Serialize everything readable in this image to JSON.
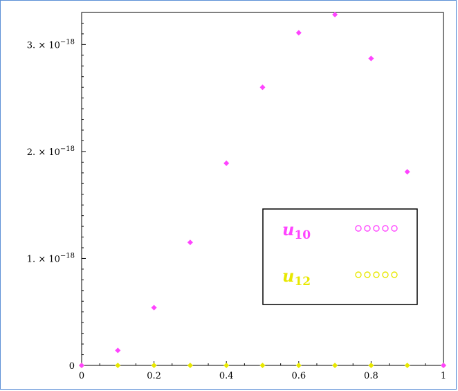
{
  "chart_data": {
    "type": "scatter",
    "xlim": [
      0,
      1
    ],
    "ylim": [
      0,
      3.3e-18
    ],
    "x_ticks": [
      {
        "value": 0,
        "label": "0"
      },
      {
        "value": 0.2,
        "label": "0.2"
      },
      {
        "value": 0.4,
        "label": "0.4"
      },
      {
        "value": 0.6,
        "label": "0.6"
      },
      {
        "value": 0.8,
        "label": "0.8"
      },
      {
        "value": 1,
        "label": "1"
      }
    ],
    "y_ticks": [
      {
        "value": 0,
        "label": "0",
        "mantissa": "",
        "exponent": ""
      },
      {
        "value": 1e-18,
        "label": "1. × 10⁻¹⁸",
        "mantissa": "1. × 10",
        "exponent": "−18"
      },
      {
        "value": 2e-18,
        "label": "2. × 10⁻¹⁸",
        "mantissa": "2. × 10",
        "exponent": "−18"
      },
      {
        "value": 3e-18,
        "label": "3. × 10⁻¹⁸",
        "mantissa": "3. × 10",
        "exponent": "−18"
      }
    ],
    "grid": false,
    "legend_position": "center-right",
    "series": [
      {
        "name": "u10",
        "name_base": "u",
        "name_sub": "10",
        "color": "#ff44ff",
        "marker": "diamond",
        "legend_symbol": "ooooo",
        "x": [
          0,
          0.1,
          0.2,
          0.3,
          0.4,
          0.5,
          0.6,
          0.7,
          0.8,
          0.9,
          1.0
        ],
        "y": [
          0,
          1.4e-19,
          5.4e-19,
          1.15e-18,
          1.89e-18,
          2.6e-18,
          3.11e-18,
          3.28e-18,
          2.87e-18,
          1.81e-18,
          0
        ]
      },
      {
        "name": "u12",
        "name_base": "u",
        "name_sub": "12",
        "color": "#e8e800",
        "marker": "diamond",
        "legend_symbol": "ooooo",
        "x": [
          0,
          0.1,
          0.2,
          0.3,
          0.4,
          0.5,
          0.6,
          0.7,
          0.8,
          0.9,
          1.0
        ],
        "y": [
          0,
          0,
          0,
          0,
          0,
          0,
          0,
          0,
          0,
          0,
          0
        ]
      }
    ]
  }
}
